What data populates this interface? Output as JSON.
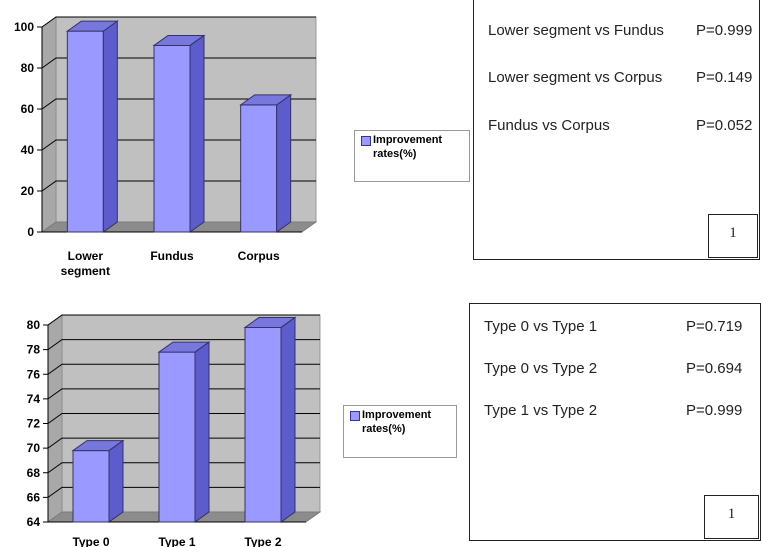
{
  "charts": [
    {
      "chart_data": {
        "type": "bar",
        "categories": [
          "Lower segment",
          "Fundus",
          "Corpus"
        ],
        "series": [
          {
            "name": "Improvement rates(%)",
            "values": [
              98,
              91,
              62
            ]
          }
        ],
        "ylim": [
          0,
          100
        ],
        "yticks": [
          0,
          20,
          40,
          60,
          80,
          100
        ],
        "grid": true,
        "legend_position": "right",
        "bar_color": "#9999ff",
        "wall_color": "#c0c0c0"
      },
      "legend_label": "Improvement rates(%)",
      "comparisons": [
        {
          "label": "Lower segment vs Fundus",
          "p": "P=0.999"
        },
        {
          "label": "Lower segment vs Corpus",
          "p": "P=0.149"
        },
        {
          "label": "Fundus vs Corpus",
          "p": "P=0.052"
        }
      ],
      "panel_number": "1"
    },
    {
      "chart_data": {
        "type": "bar",
        "categories": [
          "Type 0",
          "Type 1",
          "Type 2"
        ],
        "series": [
          {
            "name": "Improvement rates(%)",
            "values": [
              69.8,
              77.8,
              79.8
            ]
          }
        ],
        "ylim": [
          64,
          80
        ],
        "yticks": [
          64,
          66,
          68,
          70,
          72,
          74,
          76,
          78,
          80
        ],
        "grid": true,
        "legend_position": "right",
        "bar_color": "#9999ff",
        "wall_color": "#c0c0c0"
      },
      "legend_label": "Improvement rates(%)",
      "comparisons": [
        {
          "label": "Type 0 vs Type 1",
          "p": "P=0.719"
        },
        {
          "label": "Type 0 vs Type 2",
          "p": "P=0.694"
        },
        {
          "label": "Type 1 vs Type 2",
          "p": "P=0.999"
        }
      ],
      "panel_number": "1"
    }
  ]
}
